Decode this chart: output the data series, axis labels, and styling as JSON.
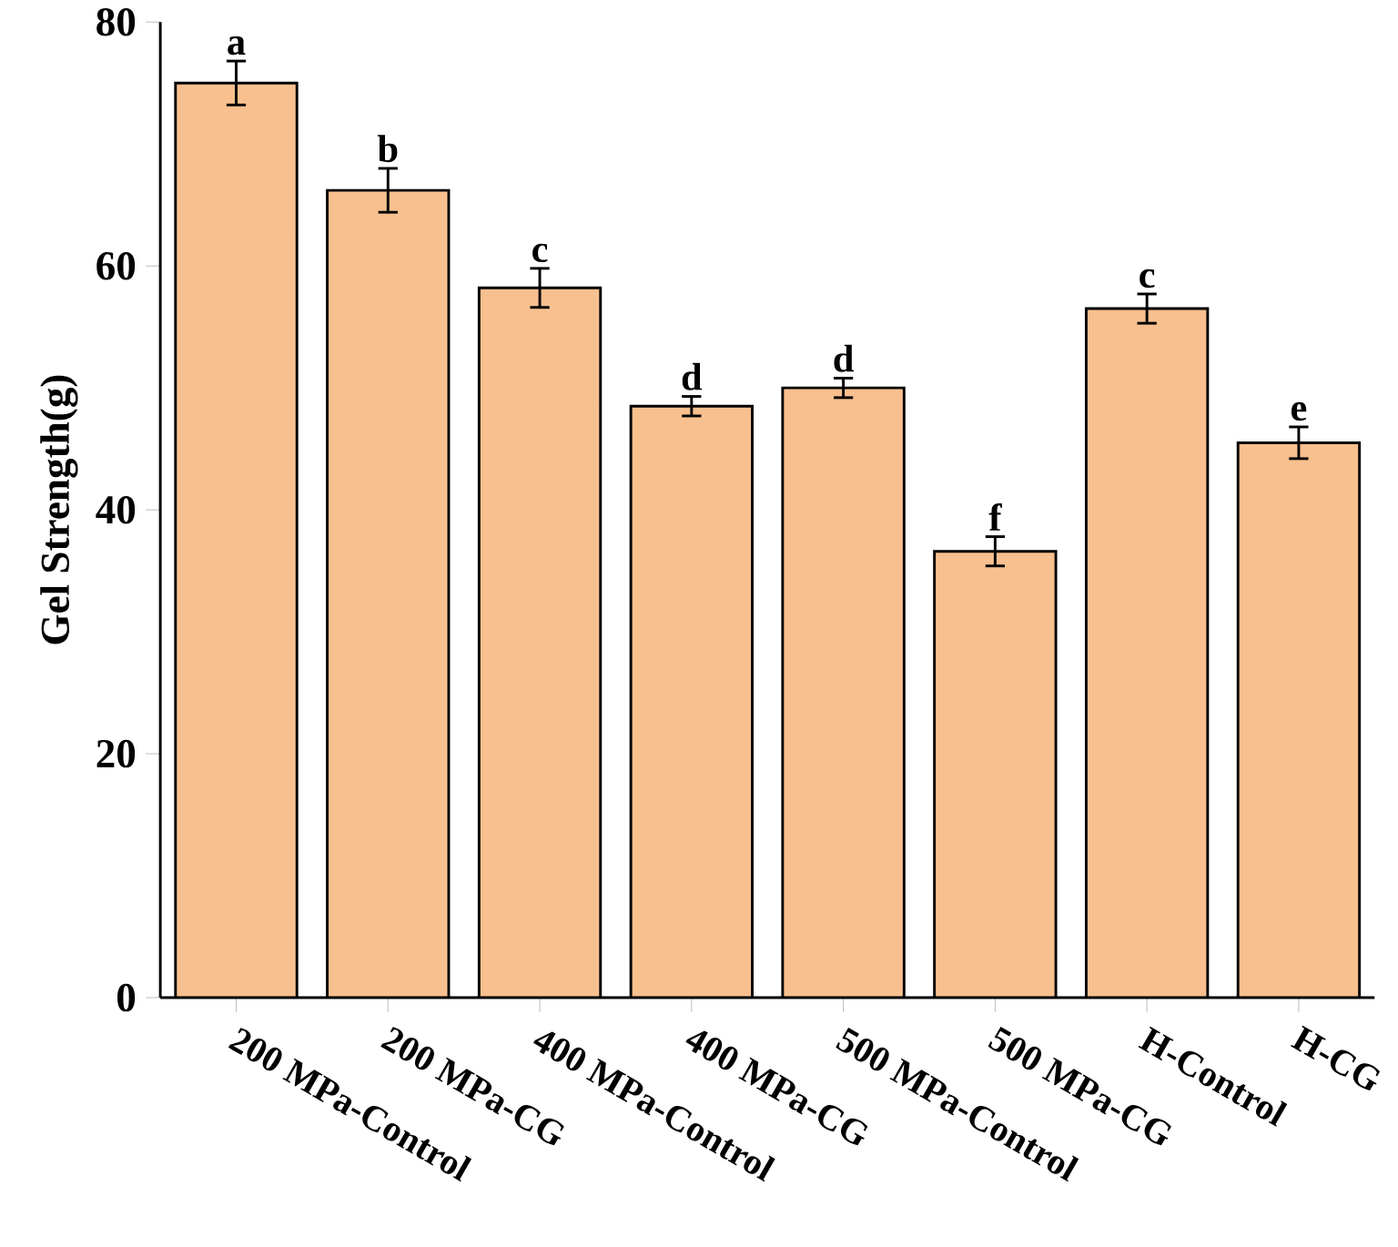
{
  "chart_data": {
    "type": "bar",
    "ylabel": "Gel Strength(g)",
    "categories": [
      "200 MPa-Control",
      "200 MPa-CG",
      "400 MPa-Control",
      "400 MPa-CG",
      "500 MPa-Control",
      "500 MPa-CG",
      "H-Control",
      "H-CG"
    ],
    "values": [
      75.0,
      66.2,
      58.2,
      48.5,
      50.0,
      36.6,
      56.5,
      45.5
    ],
    "errors": [
      1.8,
      1.8,
      1.6,
      0.8,
      0.8,
      1.2,
      1.2,
      1.3
    ],
    "color": "#f9c08f",
    "ylim": [
      0,
      80
    ],
    "yticks": [
      0,
      20,
      40,
      60,
      80
    ],
    "grid": false,
    "annotations": [
      {
        "text": "a",
        "x": "200 MPa-Control",
        "y": 76.8
      },
      {
        "text": "b",
        "x": "200 MPa-CG",
        "y": 68.0
      },
      {
        "text": "c",
        "x": "400 MPa-Control",
        "y": 59.8
      },
      {
        "text": "d",
        "x": "400 MPa-CG",
        "y": 49.3
      },
      {
        "text": "d",
        "x": "500 MPa-Control",
        "y": 50.8
      },
      {
        "text": "f",
        "x": "500 MPa-CG",
        "y": 37.8
      },
      {
        "text": "c",
        "x": "H-Control",
        "y": 57.7
      },
      {
        "text": "e",
        "x": "H-CG",
        "y": 46.8
      }
    ]
  }
}
